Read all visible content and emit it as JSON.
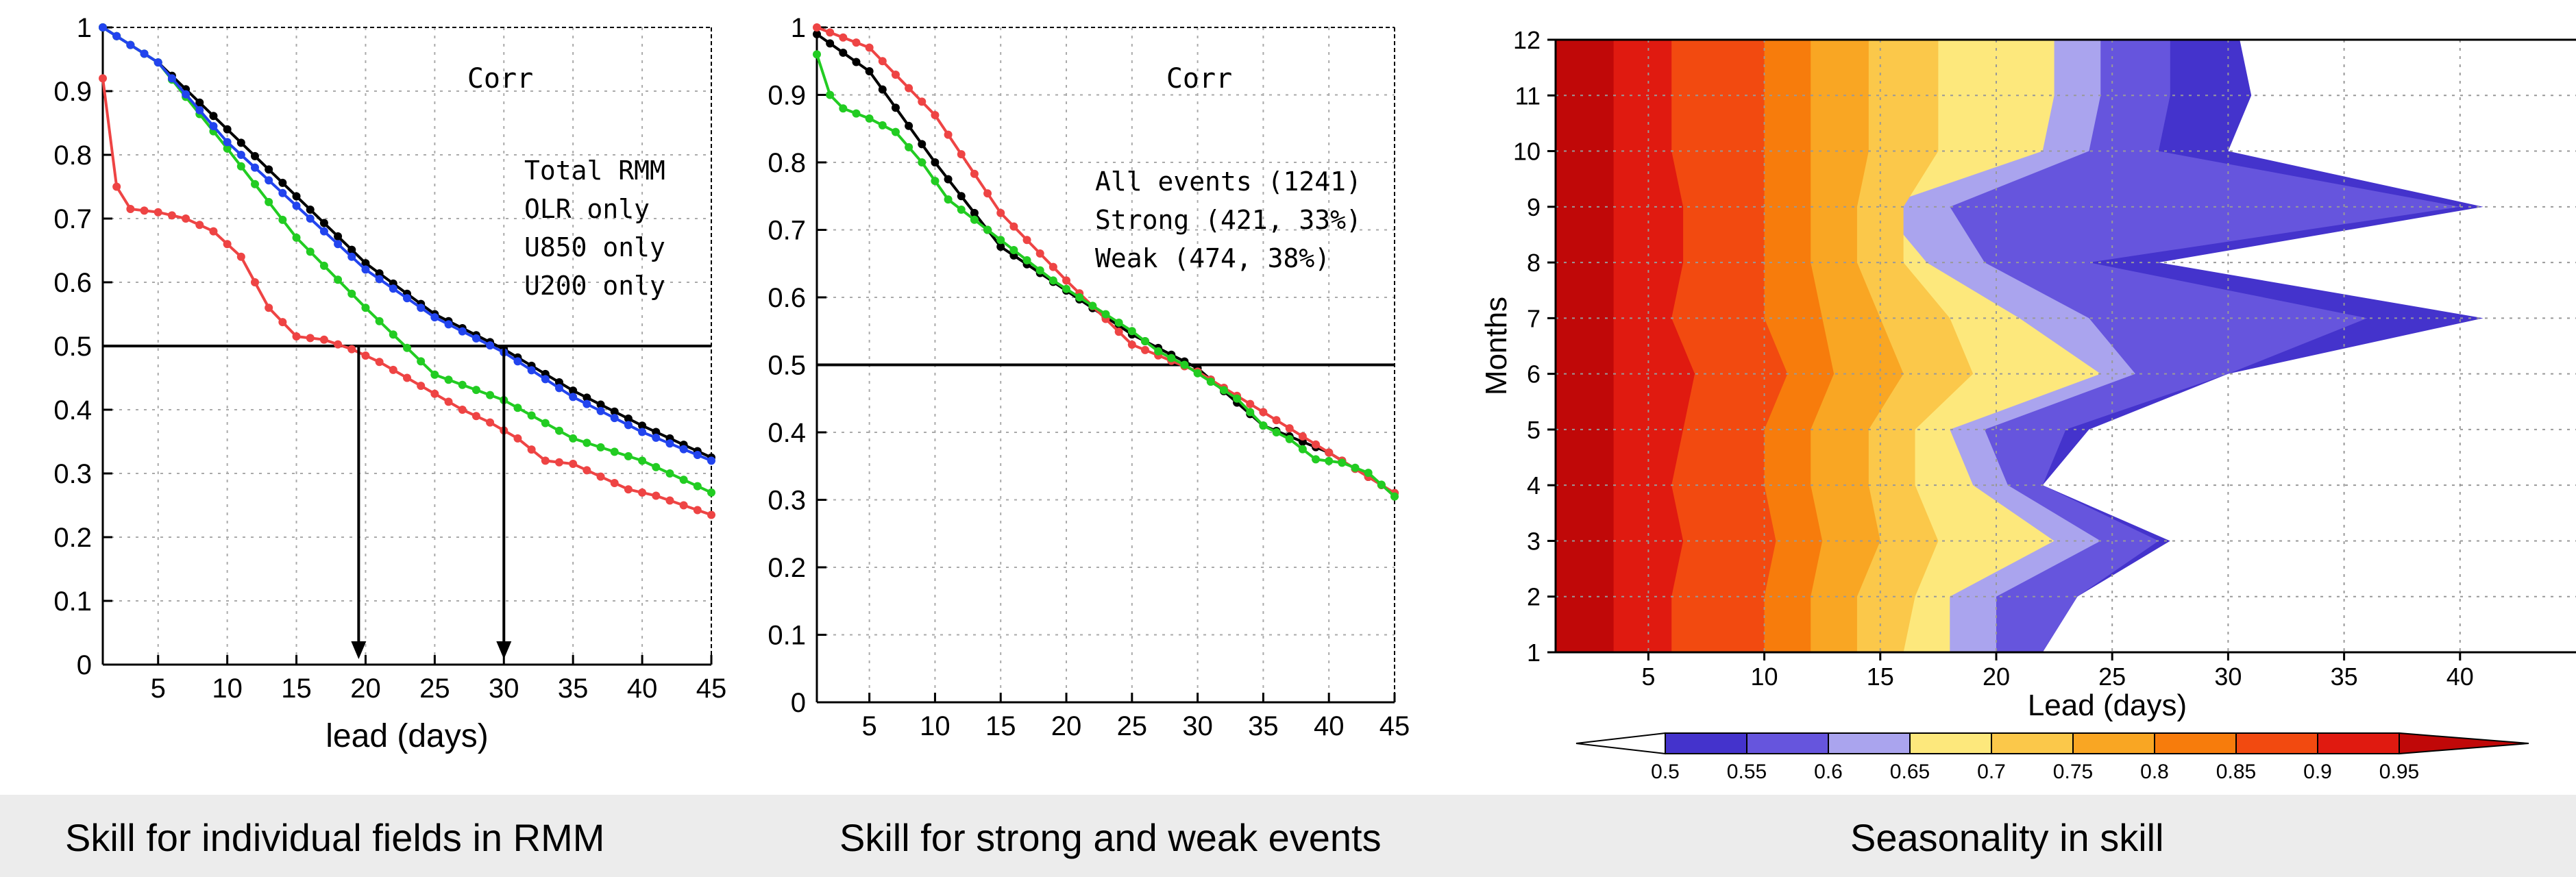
{
  "charts": {
    "panel1": {
      "annotation": "Corr",
      "xlabel": "lead (days)"
    },
    "panel2": {
      "annotation": "Corr"
    },
    "panel3": {
      "xlabel": "Lead (days)",
      "ylabel": "Months"
    }
  },
  "captions": {
    "panel1": "Skill for individual fields in RMM",
    "panel2": "Skill for strong and weak events",
    "panel3": "Seasonality in skill"
  },
  "chart_data": [
    {
      "type": "line",
      "title": "Corr",
      "xlabel": "lead (days)",
      "ylabel": "",
      "xlim": [
        1,
        45
      ],
      "ylim": [
        0,
        1
      ],
      "xticks": [
        5,
        10,
        15,
        20,
        25,
        30,
        35,
        40,
        45
      ],
      "yticks": [
        0,
        0.1,
        0.2,
        0.3,
        0.4,
        0.5,
        0.6,
        0.7,
        0.8,
        0.9,
        1
      ],
      "grid": true,
      "legend_position": "upper-right",
      "reference_line": 0.5,
      "arrows_at": [
        19.5,
        30
      ],
      "series": [
        {
          "name": "Total RMM",
          "color": "#000000",
          "x": [
            1,
            5,
            10,
            15,
            20,
            25,
            30,
            35,
            40,
            45
          ],
          "y": [
            1.0,
            0.945,
            0.84,
            0.735,
            0.63,
            0.55,
            0.495,
            0.43,
            0.375,
            0.325
          ]
        },
        {
          "name": "OLR  only",
          "color": "#ee4444",
          "x": [
            1,
            2,
            3,
            5,
            7,
            9,
            11,
            13,
            15,
            17,
            19,
            21,
            23,
            25,
            27,
            29,
            31,
            33,
            35,
            37,
            39,
            41,
            43,
            45
          ],
          "y": [
            0.92,
            0.75,
            0.715,
            0.71,
            0.7,
            0.68,
            0.64,
            0.56,
            0.515,
            0.51,
            0.495,
            0.475,
            0.45,
            0.425,
            0.4,
            0.38,
            0.355,
            0.32,
            0.315,
            0.295,
            0.275,
            0.265,
            0.25,
            0.235
          ]
        },
        {
          "name": "U850  only",
          "color": "#22cc22",
          "x": [
            1,
            5,
            10,
            15,
            20,
            25,
            30,
            35,
            40,
            45
          ],
          "y": [
            1.0,
            0.945,
            0.81,
            0.67,
            0.56,
            0.455,
            0.415,
            0.355,
            0.32,
            0.27
          ]
        },
        {
          "name": "U200  only",
          "color": "#2244ee",
          "x": [
            1,
            5,
            10,
            15,
            20,
            25,
            30,
            35,
            40,
            45
          ],
          "y": [
            1.0,
            0.945,
            0.82,
            0.72,
            0.62,
            0.545,
            0.49,
            0.42,
            0.365,
            0.32
          ]
        }
      ]
    },
    {
      "type": "line",
      "title": "Corr",
      "xlabel": "",
      "ylabel": "",
      "xlim": [
        1,
        45
      ],
      "ylim": [
        0,
        1
      ],
      "xticks": [
        5,
        10,
        15,
        20,
        25,
        30,
        35,
        40,
        45
      ],
      "yticks": [
        0,
        0.1,
        0.2,
        0.3,
        0.4,
        0.5,
        0.6,
        0.7,
        0.8,
        0.9,
        1
      ],
      "grid": true,
      "legend_position": "upper-right",
      "reference_line": 0.5,
      "series": [
        {
          "name": "All events (1241)",
          "color": "#000000",
          "x": [
            1,
            5,
            10,
            15,
            20,
            25,
            30,
            35,
            40,
            45
          ],
          "y": [
            0.99,
            0.935,
            0.8,
            0.675,
            0.61,
            0.545,
            0.495,
            0.41,
            0.37,
            0.31
          ]
        },
        {
          "name": "Strong (421, 33%)",
          "color": "#ee4444",
          "x": [
            1,
            5,
            10,
            15,
            20,
            25,
            30,
            35,
            40,
            45
          ],
          "y": [
            1.0,
            0.97,
            0.87,
            0.725,
            0.625,
            0.53,
            0.49,
            0.43,
            0.37,
            0.31
          ]
        },
        {
          "name": "Weak (474, 38%)",
          "color": "#22cc22",
          "x": [
            1,
            2,
            3,
            5,
            7,
            9,
            11,
            13,
            15,
            17,
            19,
            21,
            23,
            25,
            27,
            29,
            31,
            33,
            35,
            37,
            39,
            41,
            43,
            45
          ],
          "y": [
            0.96,
            0.9,
            0.88,
            0.865,
            0.845,
            0.8,
            0.745,
            0.715,
            0.685,
            0.655,
            0.625,
            0.6,
            0.575,
            0.55,
            0.52,
            0.5,
            0.475,
            0.45,
            0.41,
            0.39,
            0.36,
            0.355,
            0.34,
            0.305
          ]
        }
      ]
    },
    {
      "type": "heatmap",
      "title": "",
      "xlabel": "Lead (days)",
      "ylabel": "Months",
      "xlim": [
        1,
        45
      ],
      "ylim": [
        1,
        12
      ],
      "xticks": [
        5,
        10,
        15,
        20,
        25,
        30,
        35,
        40
      ],
      "yticks": [
        1,
        2,
        3,
        4,
        5,
        6,
        7,
        8,
        9,
        10,
        11,
        12
      ],
      "grid": true,
      "colorbar": {
        "labels": [
          "0.5",
          "0.55",
          "0.6",
          "0.65",
          "0.7",
          "0.75",
          "0.8",
          "0.85",
          "0.9",
          "0.95"
        ],
        "levels": [
          0.5,
          0.55,
          0.6,
          0.65,
          0.7,
          0.75,
          0.8,
          0.85,
          0.9,
          0.95
        ],
        "colors": [
          "#4433cc",
          "#6655dd",
          "#aaa4ee",
          "#fde87c",
          "#fbc84a",
          "#f9a623",
          "#f77c0c",
          "#f24a10",
          "#e01a10",
          "#c00808"
        ]
      },
      "months": [
        1,
        2,
        3,
        4,
        5,
        6,
        7,
        8,
        9,
        10,
        11,
        12
      ],
      "contour_lead_days": {
        "0.95": [
          3.5,
          3.5,
          3.5,
          3.5,
          3.5,
          3.5,
          3.5,
          3.5,
          3.5,
          3.5,
          3.5,
          3.5
        ],
        "0.9": [
          6,
          6,
          6.5,
          6,
          6.5,
          7,
          6,
          6.5,
          6.5,
          6,
          6,
          6
        ],
        "0.85": [
          10,
          10,
          10.5,
          10,
          10,
          11,
          10,
          10,
          10,
          10,
          10,
          10
        ],
        "0.8": [
          12,
          12,
          12.5,
          12,
          12,
          13,
          12.5,
          12,
          12,
          12,
          12,
          12
        ],
        "0.75": [
          14,
          14,
          15,
          14.5,
          14.5,
          16,
          15,
          14,
          14,
          14.5,
          14.5,
          14.5
        ],
        "0.7": [
          16,
          16.5,
          17.5,
          16.5,
          16.5,
          19,
          18,
          16,
          16,
          17.5,
          17.5,
          17.5
        ],
        "0.65": [
          18,
          18,
          22.5,
          19,
          18,
          24.5,
          21,
          17,
          15,
          22,
          22.5,
          22.5
        ],
        "0.6": [
          20,
          20,
          24.5,
          20.5,
          19.5,
          26,
          24,
          19.5,
          18,
          24,
          24.5,
          24.5
        ],
        "0.55": [
          22,
          23.5,
          27,
          22,
          23,
          30,
          36,
          24,
          40,
          27,
          27.5,
          27.5
        ],
        "0.5": [
          22,
          23.5,
          27.5,
          22,
          24,
          30,
          41,
          27,
          41,
          30,
          31,
          30.5
        ]
      }
    }
  ]
}
